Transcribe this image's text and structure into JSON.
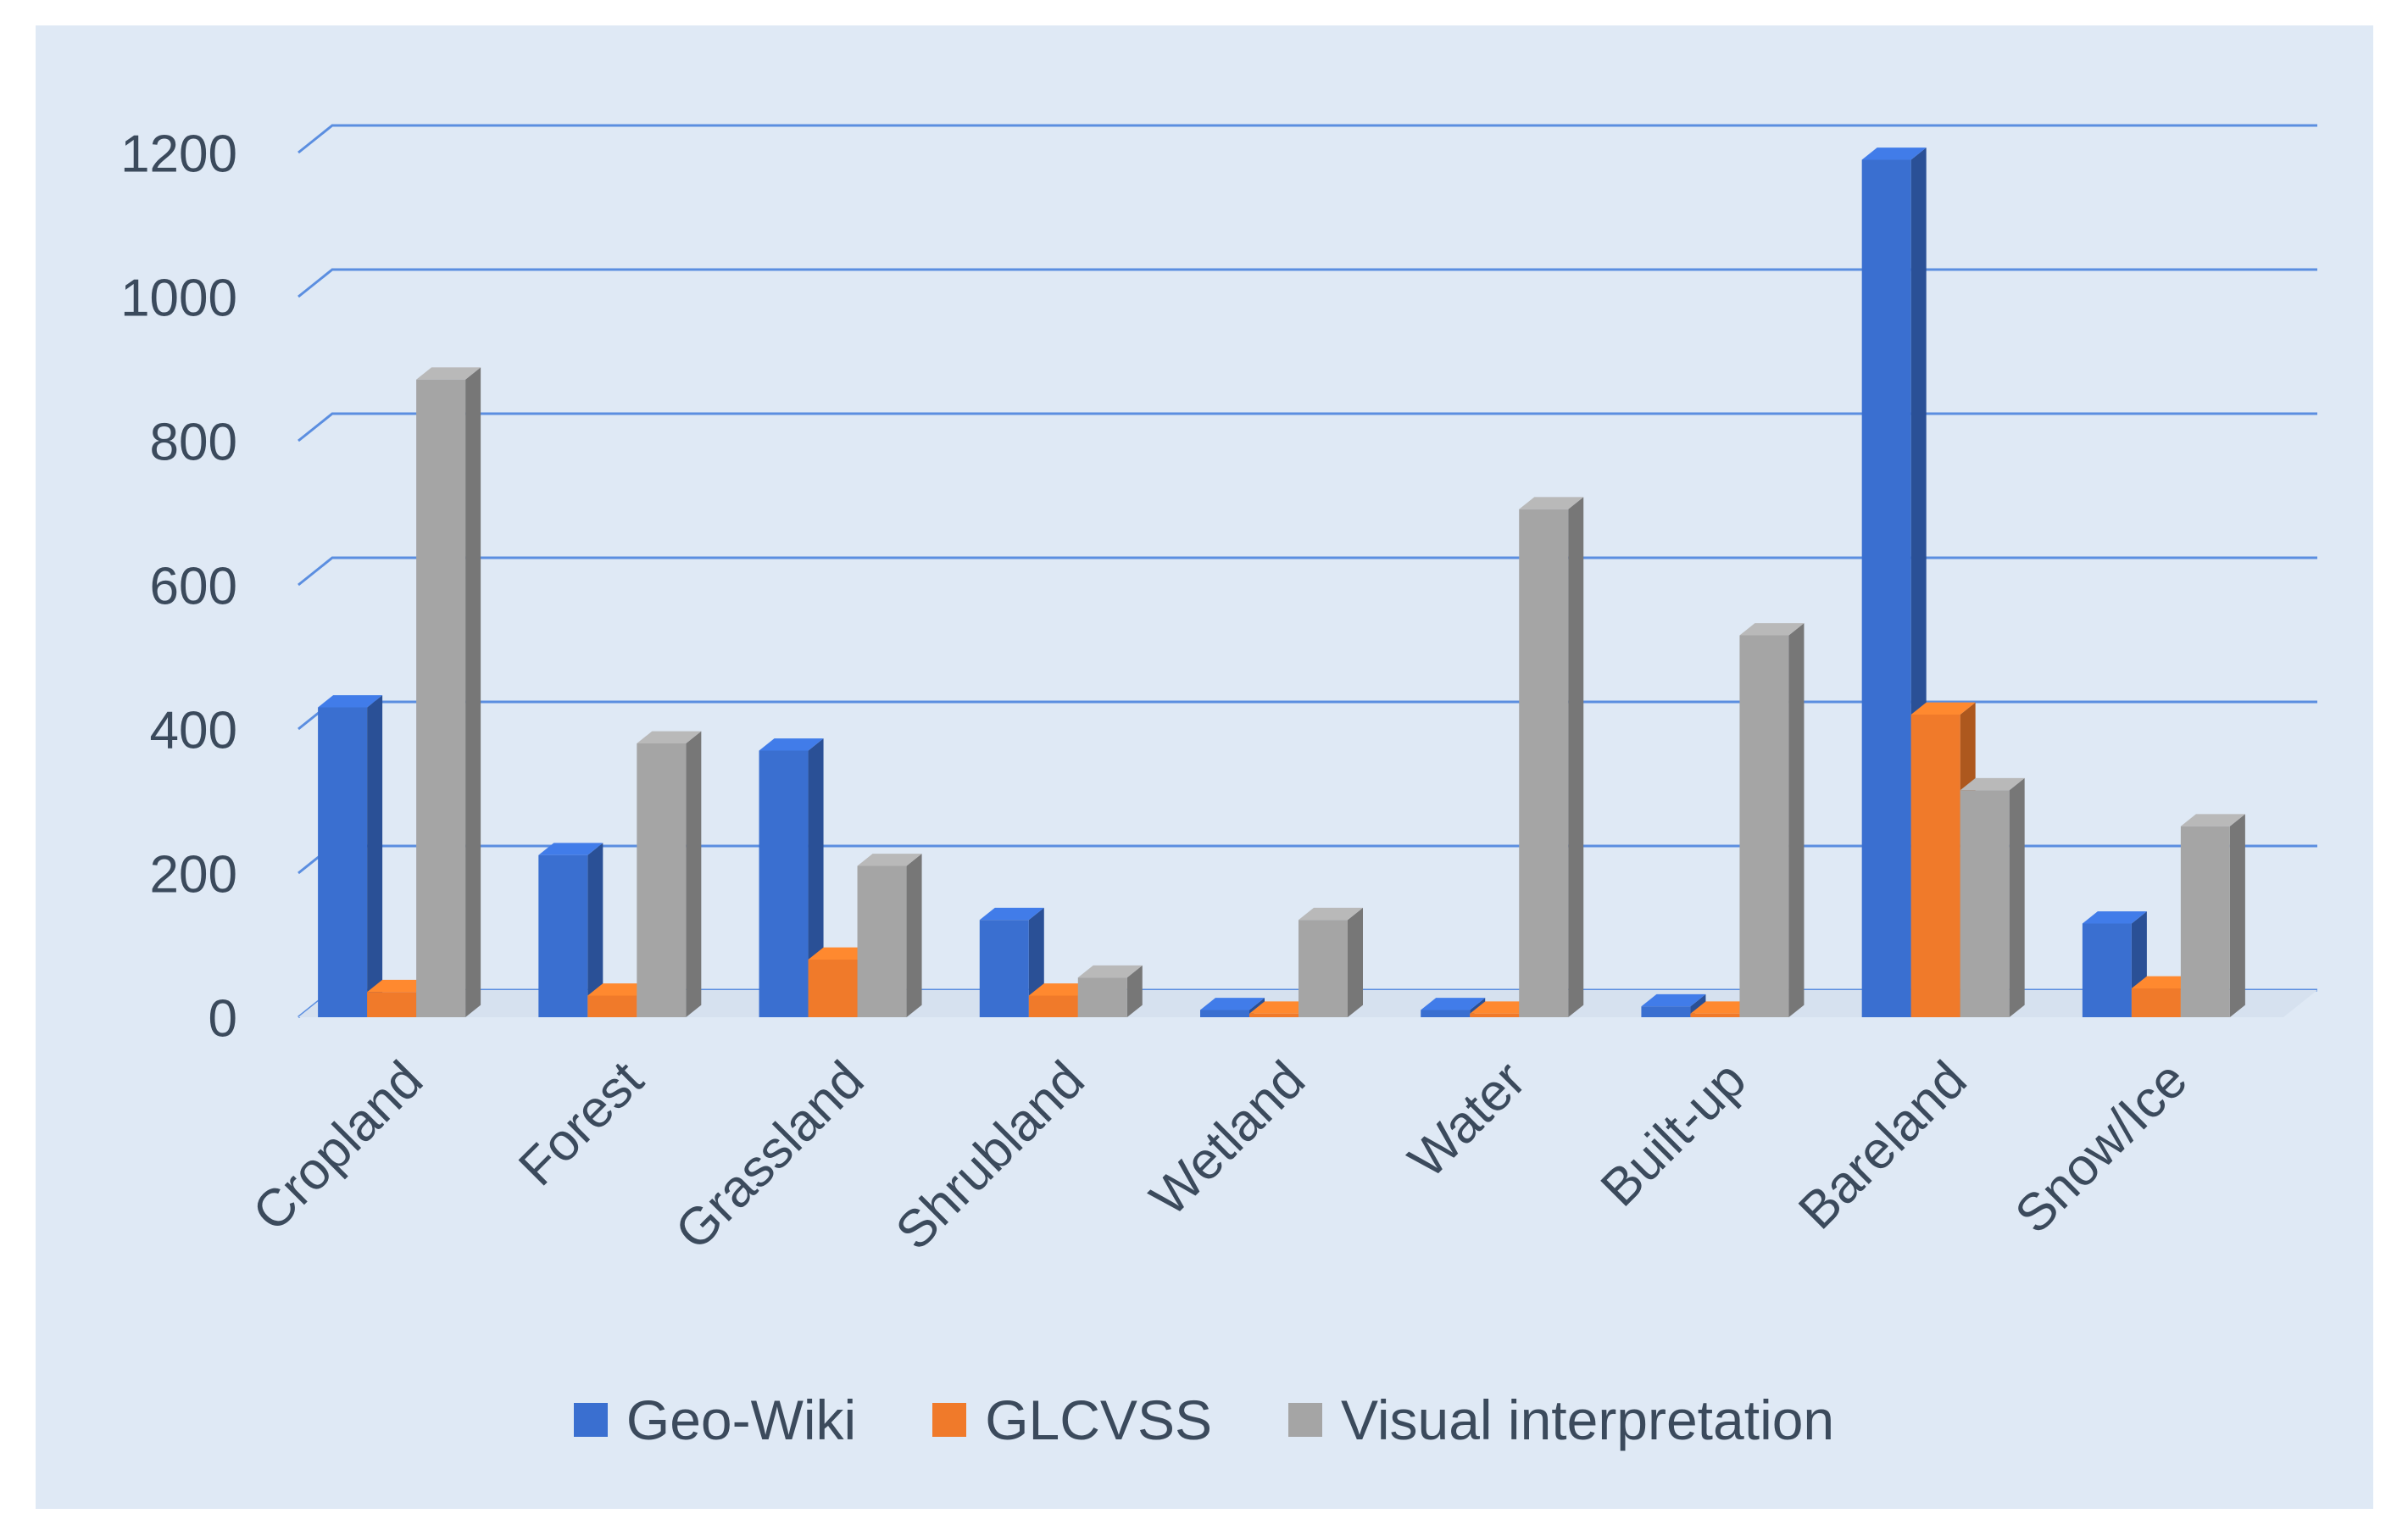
{
  "chart_data": {
    "type": "bar",
    "categories": [
      "Cropland",
      "Forest",
      "Grassland",
      "Shrubland",
      "Wetland",
      "Water",
      "Built-up",
      "Bareland",
      "Snow/Ice"
    ],
    "series": [
      {
        "name": "Geo-Wiki",
        "color": "#3a6fd0",
        "values": [
          430,
          225,
          370,
          135,
          10,
          10,
          15,
          1190,
          130
        ]
      },
      {
        "name": "GLCVSS",
        "color": "#f07a2a",
        "values": [
          35,
          30,
          80,
          30,
          5,
          5,
          5,
          420,
          40
        ]
      },
      {
        "name": "Visual interpretation",
        "color": "#a5a5a5",
        "values": [
          885,
          380,
          210,
          55,
          135,
          705,
          530,
          315,
          265
        ]
      }
    ],
    "yticks": [
      "0",
      "200",
      "400",
      "600",
      "800",
      "1000",
      "1200"
    ],
    "ylim": [
      0,
      1200
    ],
    "grid": true,
    "legend_position": "bottom",
    "style": "3d-clustered-column"
  }
}
